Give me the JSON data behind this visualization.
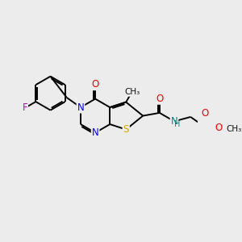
{
  "bg_color": "#ececec",
  "atom_colors": {
    "C": "#000000",
    "N": "#0000ff",
    "O": "#ff0000",
    "S": "#ccaa00",
    "F": "#cc00cc",
    "H": "#008888"
  },
  "bond_color": "#000000",
  "figsize": [
    3.0,
    3.0
  ],
  "dpi": 100,
  "bond_lw": 1.4
}
